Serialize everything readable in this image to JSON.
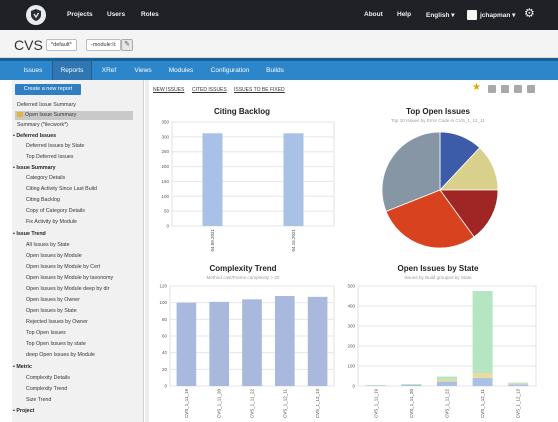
{
  "nav": {
    "projects": "Projects",
    "users": "Users",
    "roles": "Roles",
    "about": "About",
    "help": "Help",
    "language": "English ▾",
    "user": "jchapman ▾"
  },
  "header": {
    "title": "CVS",
    "stream": "*default*",
    "module": "-module:li:"
  },
  "tabs": [
    "Issues",
    "Reports",
    "XRef",
    "Views",
    "Modules",
    "Configuration",
    "Builds"
  ],
  "sidebar": {
    "new_report": "Create a new report",
    "top_items": [
      "Deferred Issue Summary",
      "Open Issue Summary",
      "Summary (*ilecwork*)"
    ],
    "groups": [
      {
        "name": "Deferred Issues",
        "items": [
          "Deferred Issues by State",
          "Top Deferred Issues"
        ]
      },
      {
        "name": "Issue Summary",
        "items": [
          "Category Details",
          "Citing Activity Since Last Build",
          "Citing Backlog",
          "Copy of Category Details",
          "Fix Activity by Module"
        ]
      },
      {
        "name": "Issue Trend",
        "items": [
          "All Issues by State",
          "Open Issues by Module",
          "Open Issues by Module by Cert",
          "Open Issues by Module by taxonomy",
          "Open Issues by Module deep by dir",
          "Open Issues by Owner",
          "Open Issues by State",
          "Rejected Issues by Owner",
          "Top Open Issues",
          "Top Open Issues by state",
          "deep Open Issues by Module"
        ]
      },
      {
        "name": "Metric",
        "items": [
          "Complexity Details",
          "Complexity Trend",
          "Size Trend"
        ]
      },
      {
        "name": "Project",
        "items": []
      }
    ]
  },
  "toolbar": {
    "new_issues": "NEW ISSUES",
    "citing_issues": "CITED ISSUES",
    "issues_fixed": "ISSUES TO BE FIXED"
  },
  "chart_data": [
    {
      "type": "bar",
      "title": "Citing Backlog",
      "categories": [
        "04.09.2021",
        "04.15.2021"
      ],
      "values": [
        312,
        312
      ],
      "ylim": [
        0,
        350
      ],
      "yticks": [
        0,
        50,
        100,
        150,
        200,
        250,
        300,
        350
      ],
      "color": "#a9c1e6"
    },
    {
      "type": "pie",
      "title": "Top Open Issues",
      "subtitle": "Top 10 Issues by Error Code in CVS_1_12_11",
      "slices": [
        {
          "value": 12,
          "color": "#3c5ba8"
        },
        {
          "value": 13,
          "color": "#d9d08b"
        },
        {
          "value": 15,
          "color": "#a02525"
        },
        {
          "value": 29,
          "color": "#d9421e"
        },
        {
          "value": 31,
          "color": "#8796a4"
        }
      ]
    },
    {
      "type": "bar",
      "title": "Complexity Trend",
      "subtitle": "Method cost/Frame complexity > 20",
      "categories": [
        "CVS_1_11_19",
        "CVS_1_11_20",
        "CVS_1_11_22",
        "CVS_1_12_11",
        "CVS_1_12_13"
      ],
      "values": [
        100,
        101,
        104,
        108,
        107
      ],
      "ylim": [
        0,
        120
      ],
      "yticks": [
        0,
        20,
        40,
        60,
        80,
        100,
        120
      ],
      "color": "#a9b9dd"
    },
    {
      "type": "bar",
      "title": "Open Issues by State",
      "subtitle": "Issues by Build grouped by State",
      "categories": [
        "CVS_1_11_19",
        "CVS_1_11_20",
        "CVS_1_11_22",
        "CVS_1_12_11",
        "CVS_1_12_13"
      ],
      "series": [
        {
          "values": [
            2,
            6,
            22,
            40,
            8
          ],
          "color": "#a9c1e6"
        },
        {
          "values": [
            1,
            1,
            10,
            25,
            4
          ],
          "color": "#e9dd9d"
        },
        {
          "values": [
            2,
            3,
            15,
            410,
            5
          ],
          "color": "#b5e6c1"
        }
      ],
      "ylim": [
        0,
        500
      ],
      "yticks": [
        0,
        100,
        200,
        300,
        400,
        500
      ]
    }
  ]
}
